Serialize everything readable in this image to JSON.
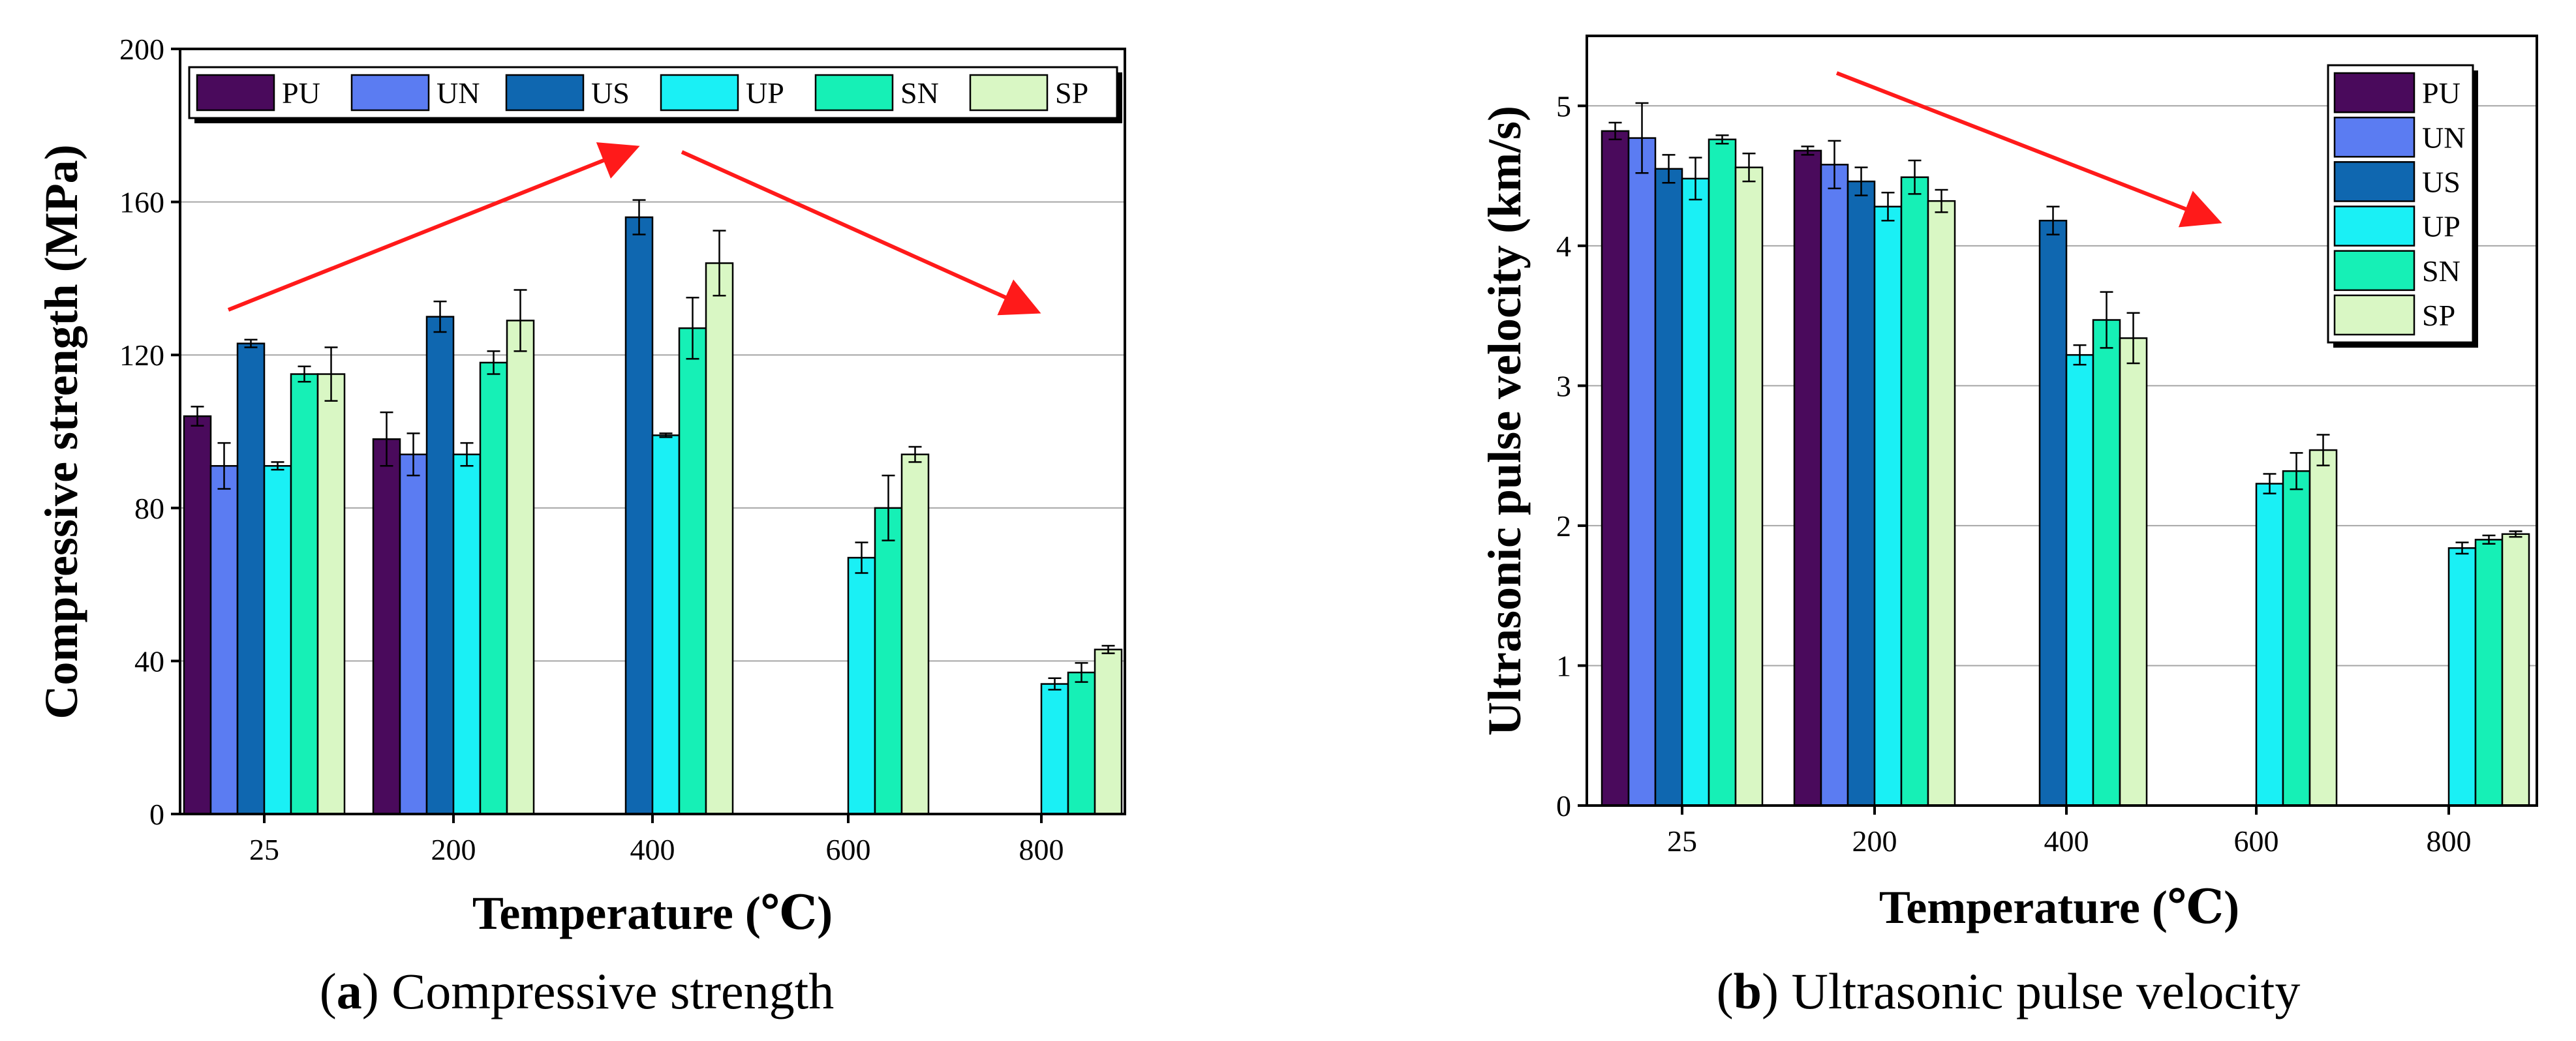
{
  "figure": {
    "colors": {
      "PU": "#4a0a5c",
      "UN": "#5b7cf2",
      "US": "#0f67b0",
      "UP": "#1af0f5",
      "SN": "#16f0b6",
      "SP": "#d9f7c4",
      "trend_arrow": "#ff1a1a",
      "grid": "#a6a6a6"
    }
  },
  "chart_data": [
    {
      "type": "bar",
      "caption_letter": "a",
      "caption_text": "Compressive strength",
      "xlabel": "Temperature (℃)",
      "ylabel": "Compressive  strength (MPa)",
      "categories": [
        "25",
        "200",
        "400",
        "600",
        "800"
      ],
      "ylim": [
        0,
        200
      ],
      "yticks": [
        "0",
        "40",
        "80",
        "120",
        "160",
        "200"
      ],
      "grid": true,
      "legend": {
        "placement": "top, single row",
        "entries": [
          "PU",
          "UN",
          "US",
          "UP",
          "SN",
          "SP"
        ]
      },
      "series": [
        {
          "name": "PU",
          "values": [
            104,
            98,
            null,
            null,
            null
          ],
          "errors": [
            2.5,
            7,
            null,
            null,
            null
          ]
        },
        {
          "name": "UN",
          "values": [
            91,
            94,
            null,
            null,
            null
          ],
          "errors": [
            6,
            5.5,
            null,
            null,
            null
          ]
        },
        {
          "name": "US",
          "values": [
            123,
            130,
            156,
            null,
            null
          ],
          "errors": [
            1,
            4,
            4.5,
            null,
            null
          ]
        },
        {
          "name": "UP",
          "values": [
            91,
            94,
            99,
            67,
            34
          ],
          "errors": [
            1,
            3,
            0.5,
            4,
            1.5
          ]
        },
        {
          "name": "SN",
          "values": [
            115,
            118,
            127,
            80,
            37
          ],
          "errors": [
            2,
            3,
            8,
            8.5,
            2.5
          ]
        },
        {
          "name": "SP",
          "values": [
            115,
            129,
            144,
            94,
            43
          ],
          "errors": [
            7,
            8,
            8.5,
            2,
            1
          ]
        }
      ],
      "annotations": [
        "red arrow: increasing trend from 25 to 400",
        "red arrow: decreasing trend from 400 to 800"
      ]
    },
    {
      "type": "bar",
      "caption_letter": "b",
      "caption_text": "Ultrasonic pulse velocity",
      "xlabel": "Temperature (℃)",
      "ylabel": "Ultrasonic pulse velocity (km/s)",
      "categories": [
        "25",
        "200",
        "400",
        "600",
        "800"
      ],
      "ylim": [
        0,
        5.5
      ],
      "yticks": [
        "0",
        "1",
        "2",
        "3",
        "4",
        "5"
      ],
      "grid": true,
      "legend": {
        "placement": "top-right, single column",
        "entries": [
          "PU",
          "UN",
          "US",
          "UP",
          "SN",
          "SP"
        ]
      },
      "series": [
        {
          "name": "PU",
          "values": [
            4.82,
            4.68,
            null,
            null,
            null
          ],
          "errors": [
            0.06,
            0.03,
            null,
            null,
            null
          ]
        },
        {
          "name": "UN",
          "values": [
            4.77,
            4.58,
            null,
            null,
            null
          ],
          "errors": [
            0.25,
            0.17,
            null,
            null,
            null
          ]
        },
        {
          "name": "US",
          "values": [
            4.55,
            4.46,
            4.18,
            null,
            null
          ],
          "errors": [
            0.1,
            0.1,
            0.1,
            null,
            null
          ]
        },
        {
          "name": "UP",
          "values": [
            4.48,
            4.28,
            3.22,
            2.3,
            1.84
          ],
          "errors": [
            0.15,
            0.1,
            0.07,
            0.07,
            0.04
          ]
        },
        {
          "name": "SN",
          "values": [
            4.76,
            4.49,
            3.47,
            2.39,
            1.9
          ],
          "errors": [
            0.03,
            0.12,
            0.2,
            0.13,
            0.03
          ]
        },
        {
          "name": "SP",
          "values": [
            4.56,
            4.32,
            3.34,
            2.54,
            1.94
          ],
          "errors": [
            0.1,
            0.08,
            0.18,
            0.11,
            0.02
          ]
        }
      ],
      "annotations": [
        "red arrow: decreasing trend"
      ]
    }
  ]
}
